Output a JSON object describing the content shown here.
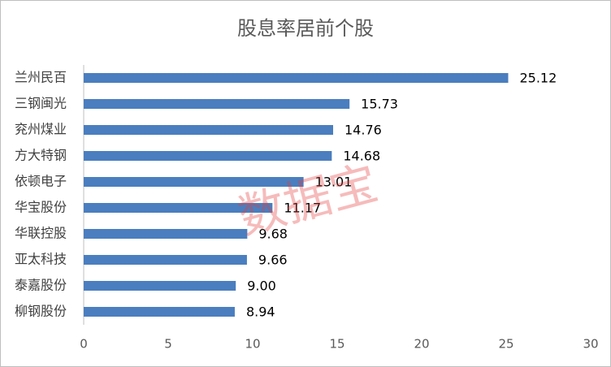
{
  "chart_data": {
    "type": "bar",
    "orientation": "horizontal",
    "title": "股息率居前个股",
    "categories": [
      "兰州民百",
      "三钢闽光",
      "兖州煤业",
      "方大特钢",
      "依顿电子",
      "华宝股份",
      "华联控股",
      "亚太科技",
      "泰嘉股份",
      "柳钢股份"
    ],
    "values": [
      25.12,
      15.73,
      14.76,
      14.68,
      13.01,
      11.17,
      9.68,
      9.66,
      9.0,
      8.94
    ],
    "value_labels": [
      "25.12",
      "15.73",
      "14.76",
      "14.68",
      "13.01",
      "11.17",
      "9.68",
      "9.66",
      "9.00",
      "8.94"
    ],
    "color": "#4a7ebf",
    "xlim": [
      0,
      30
    ],
    "xticks": [
      0,
      5,
      10,
      15,
      20,
      25,
      30
    ],
    "grid": false,
    "watermark": "数据宝"
  }
}
